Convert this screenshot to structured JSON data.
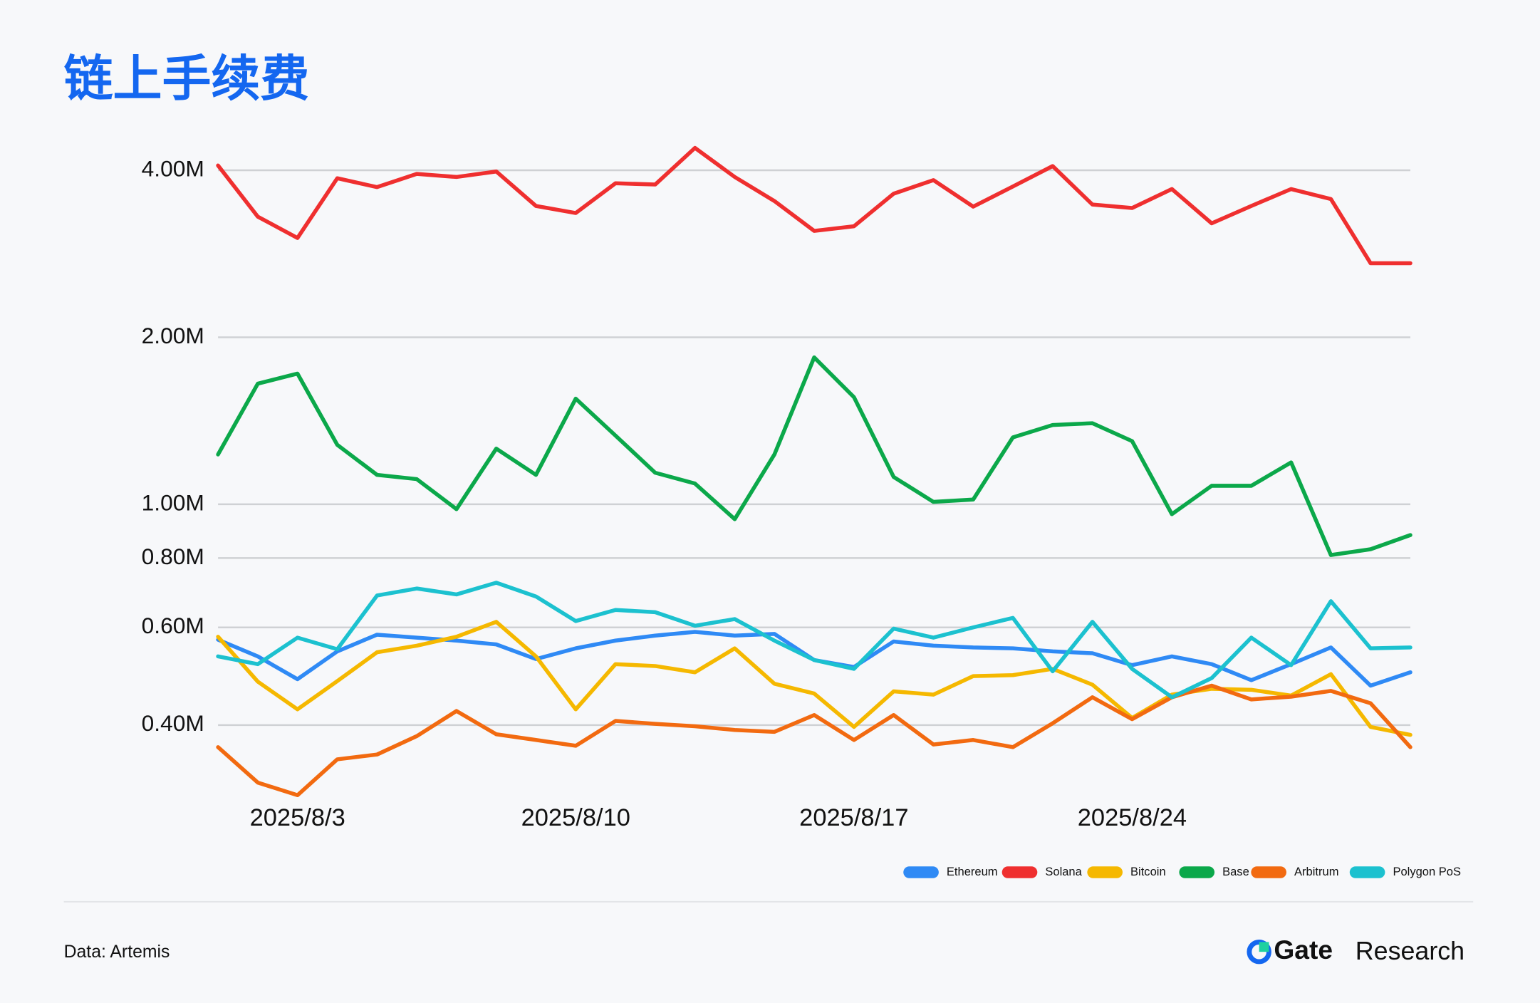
{
  "chart_data": {
    "type": "line",
    "title": "链上手续费",
    "categories": [
      null,
      null,
      "2025/8/3",
      null,
      null,
      null,
      null,
      null,
      null,
      "2025/8/10",
      null,
      null,
      null,
      null,
      null,
      null,
      "2025/8/17",
      null,
      null,
      null,
      null,
      null,
      null,
      "2025/8/24",
      null,
      null,
      null,
      null,
      null,
      null,
      null
    ],
    "log_scale": true,
    "grid": true,
    "legend": "bottom-right",
    "ylim": [
      290000,
      4600000
    ],
    "yticks": [
      {
        "value": 400000,
        "label": "0.40M"
      },
      {
        "value": 600000,
        "label": "0.60M"
      },
      {
        "value": 800000,
        "label": "0.80M"
      },
      {
        "value": 1000000,
        "label": "1.00M"
      },
      {
        "value": 2000000,
        "label": "2.00M"
      },
      {
        "value": 4000000,
        "label": "4.00M"
      }
    ],
    "series": [
      {
        "name": "Ethereum",
        "color": "#2f8af5",
        "values": [
          570000,
          532000,
          484000,
          543000,
          582000,
          575000,
          568000,
          559000,
          526000,
          550000,
          568000,
          580000,
          589000,
          580000,
          584000,
          524000,
          509000,
          566000,
          556000,
          552000,
          550000,
          543000,
          539000,
          513000,
          532000,
          515000,
          482000,
          515000,
          552000,
          471000,
          498000
        ]
      },
      {
        "name": "Solana",
        "color": "#ef2f2f",
        "values": [
          4080000,
          3300000,
          3020000,
          3870000,
          3730000,
          3940000,
          3890000,
          3980000,
          3450000,
          3350000,
          3790000,
          3770000,
          4390000,
          3890000,
          3520000,
          3110000,
          3170000,
          3630000,
          3840000,
          3440000,
          3740000,
          4070000,
          3470000,
          3420000,
          3700000,
          3210000,
          3450000,
          3700000,
          3550000,
          2720000,
          2720000
        ]
      },
      {
        "name": "Bitcoin",
        "color": "#f5b800",
        "values": [
          577000,
          479000,
          427000,
          480000,
          541000,
          556000,
          577000,
          614000,
          532000,
          427000,
          515000,
          511000,
          498000,
          550000,
          475000,
          456000,
          397000,
          460000,
          454000,
          490000,
          492000,
          505000,
          473000,
          412000,
          454000,
          465000,
          463000,
          452000,
          494000,
          397000,
          384000
        ]
      },
      {
        "name": "Base",
        "color": "#0ba84a",
        "values": [
          1230000,
          1650000,
          1720000,
          1280000,
          1130000,
          1110000,
          980000,
          1260000,
          1130000,
          1550000,
          1330000,
          1140000,
          1090000,
          940000,
          1230000,
          1840000,
          1560000,
          1120000,
          1010000,
          1020000,
          1320000,
          1390000,
          1400000,
          1300000,
          960000,
          1080000,
          1080000,
          1190000,
          810000,
          830000,
          880000
        ]
      },
      {
        "name": "Arbitrum",
        "color": "#f26a10",
        "values": [
          365000,
          315000,
          299000,
          347000,
          354000,
          382000,
          424000,
          385000,
          376000,
          367000,
          407000,
          402000,
          398000,
          392000,
          389000,
          417000,
          376000,
          417000,
          369000,
          376000,
          365000,
          403000,
          449000,
          410000,
          449000,
          471000,
          445000,
          450000,
          461000,
          438000,
          365000
        ]
      },
      {
        "name": "Polygon PoS",
        "color": "#1cc1cf",
        "values": [
          532000,
          515000,
          575000,
          548000,
          685000,
          705000,
          688000,
          722000,
          682000,
          616000,
          645000,
          639000,
          604000,
          621000,
          568000,
          524000,
          505000,
          597000,
          575000,
          600000,
          624000,
          500000,
          614000,
          505000,
          449000,
          486000,
          575000,
          513000,
          669000,
          550000,
          552000
        ]
      }
    ]
  },
  "footer": {
    "source": "Data: Artemis",
    "brand": "Gate",
    "brand_suffix": "Research"
  }
}
